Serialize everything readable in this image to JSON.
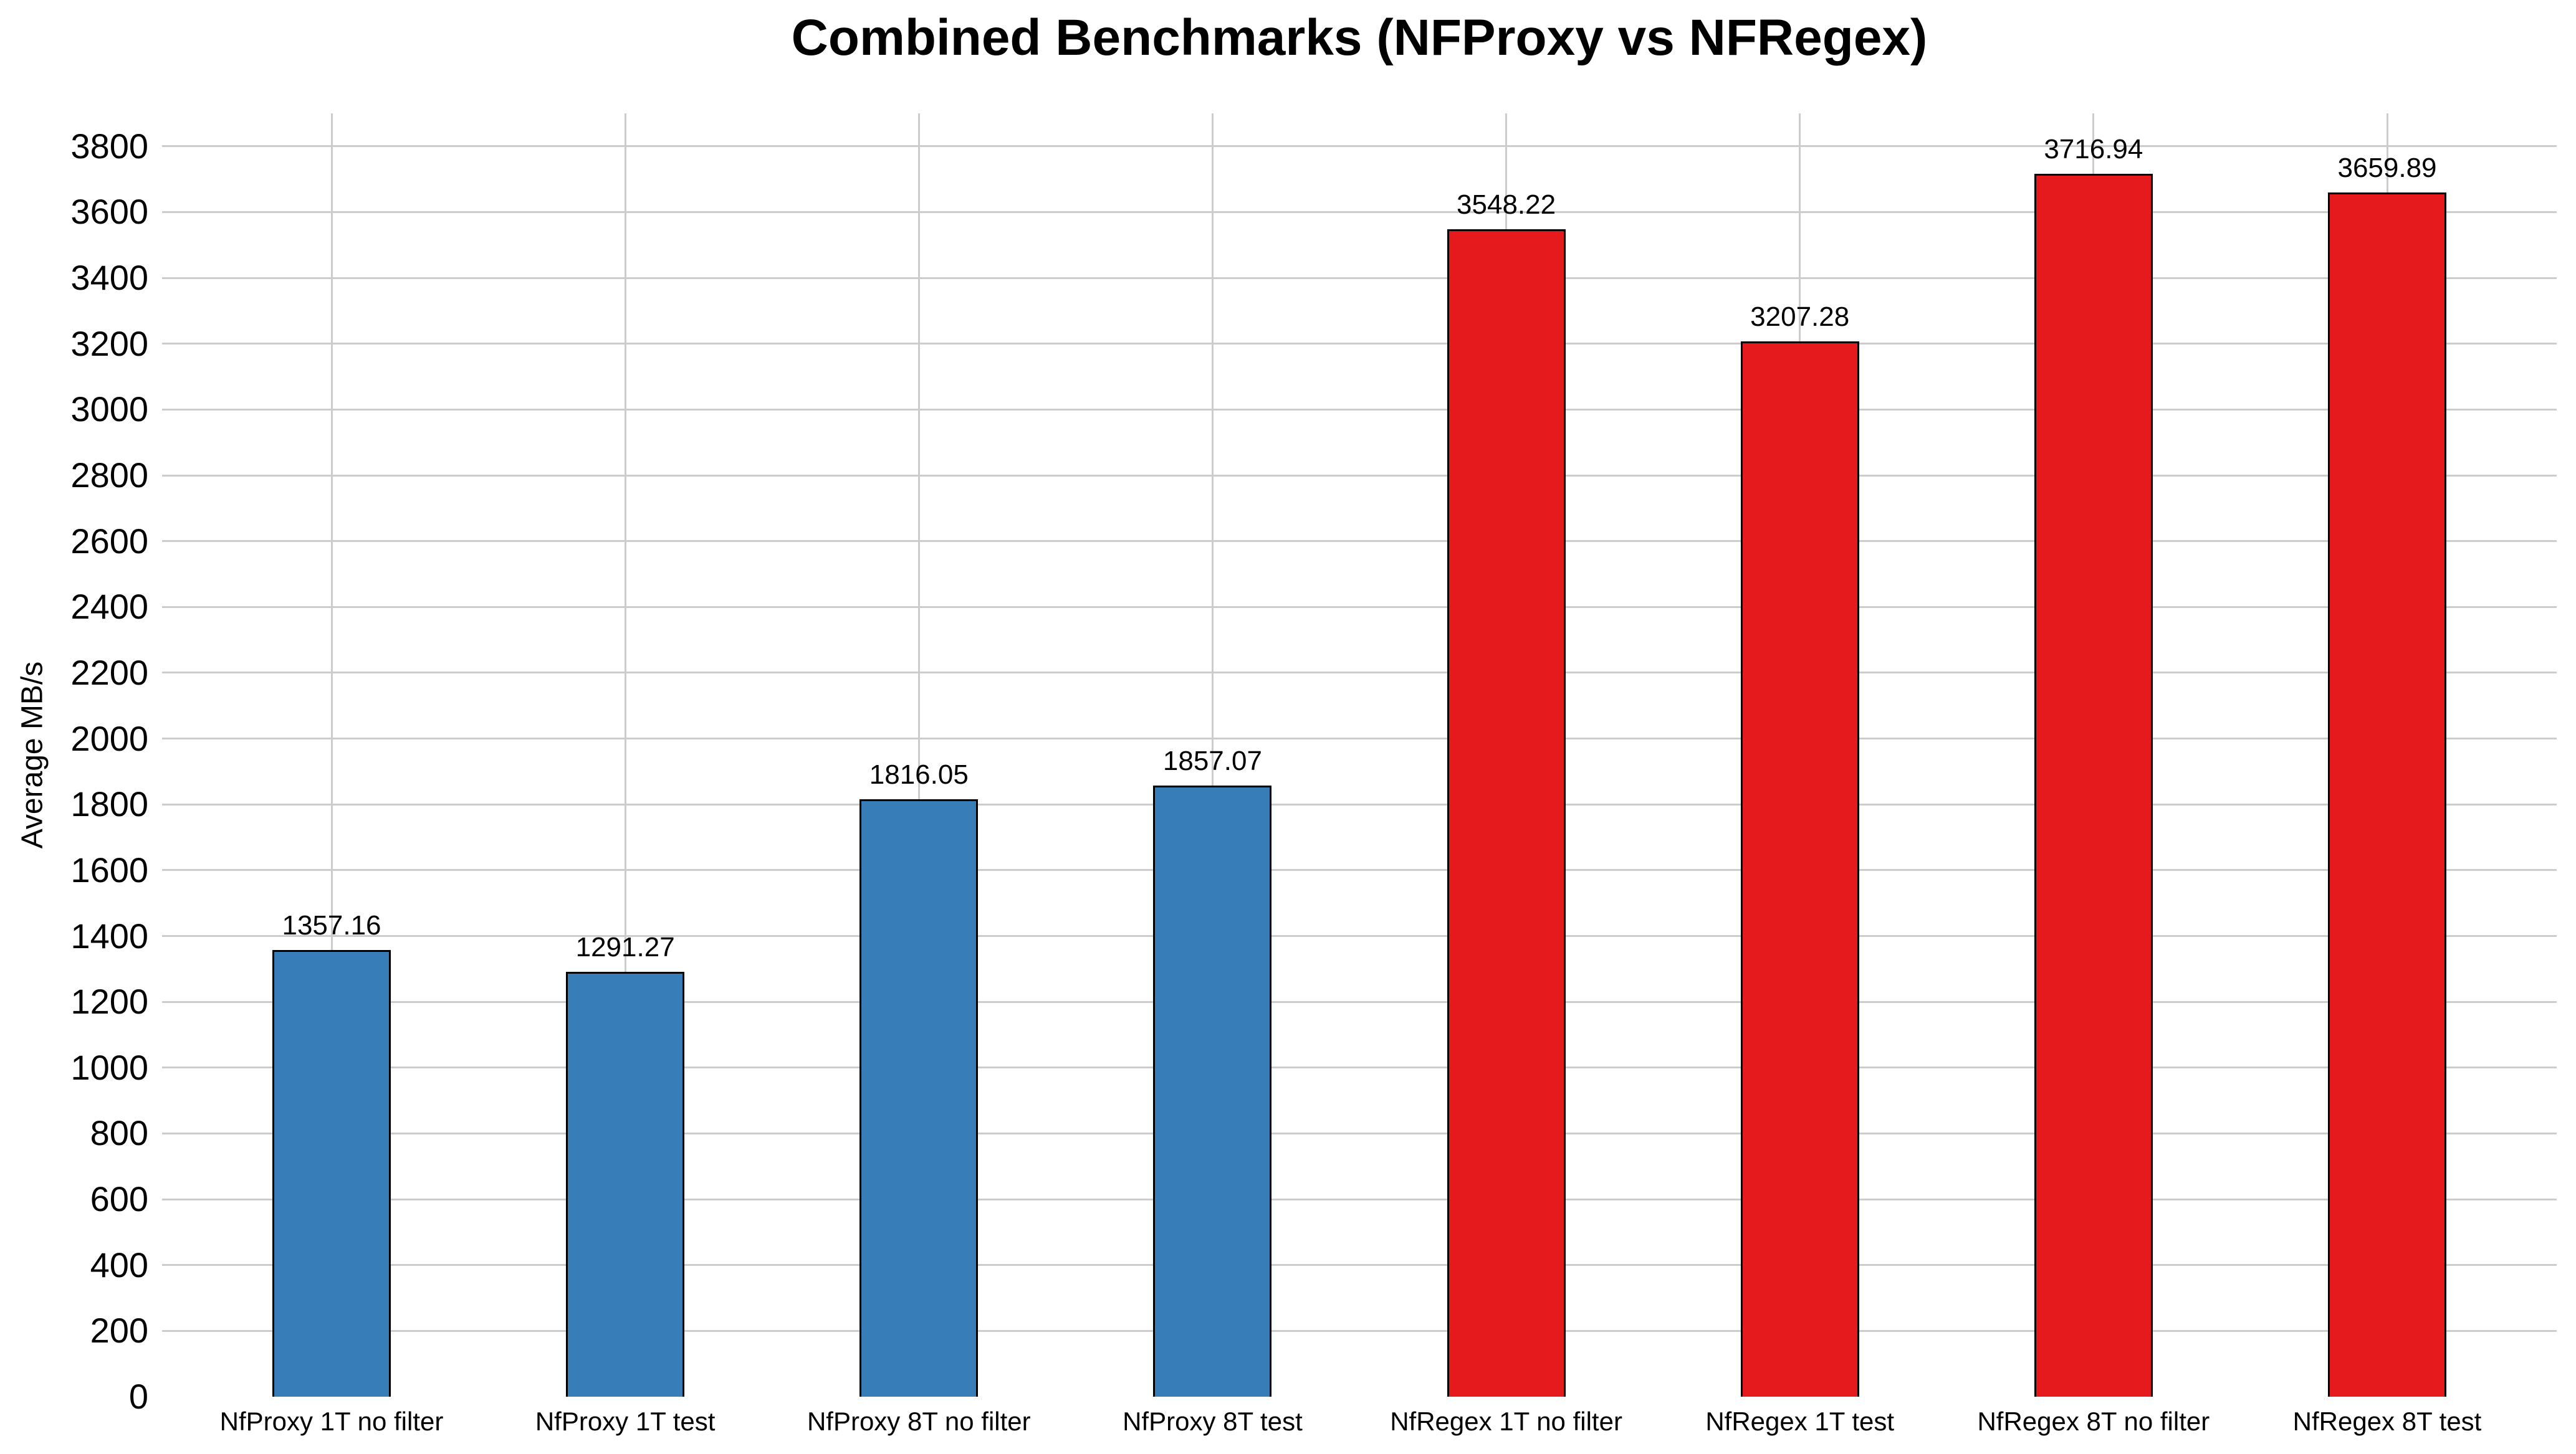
{
  "chart_data": {
    "type": "bar",
    "title": "Combined Benchmarks (NFProxy vs NFRegex)",
    "ylabel": "Average MB/s",
    "xlabel": "",
    "categories": [
      "NfProxy 1T no filter",
      "NfProxy 1T test",
      "NfProxy 8T no filter",
      "NfProxy 8T test",
      "NfRegex 1T no filter",
      "NfRegex 1T test",
      "NfRegex 8T no filter",
      "NfRegex 8T test"
    ],
    "values": [
      1357.16,
      1291.27,
      1816.05,
      1857.07,
      3548.22,
      3207.28,
      3716.94,
      3659.89
    ],
    "value_labels": [
      "1357.16",
      "1291.27",
      "1816.05",
      "1857.07",
      "3548.22",
      "3207.28",
      "3716.94",
      "3659.89"
    ],
    "bar_colors": [
      "#377eb8",
      "#377eb8",
      "#377eb8",
      "#377eb8",
      "#e41a1c",
      "#e41a1c",
      "#e41a1c",
      "#e41a1c"
    ],
    "series_colors": {
      "NFProxy": "#377eb8",
      "NFRegex": "#e41a1c"
    },
    "y_ticks": [
      0,
      200,
      400,
      600,
      800,
      1000,
      1200,
      1400,
      1600,
      1800,
      2000,
      2200,
      2400,
      2600,
      2800,
      3000,
      3200,
      3400,
      3600,
      3800
    ],
    "ylim": [
      0,
      3900
    ],
    "grid": true,
    "legend": "none",
    "colors": {
      "grid": "#cccccc",
      "bar_edge": "#000000",
      "background": "#ffffff",
      "text": "#000000"
    }
  }
}
